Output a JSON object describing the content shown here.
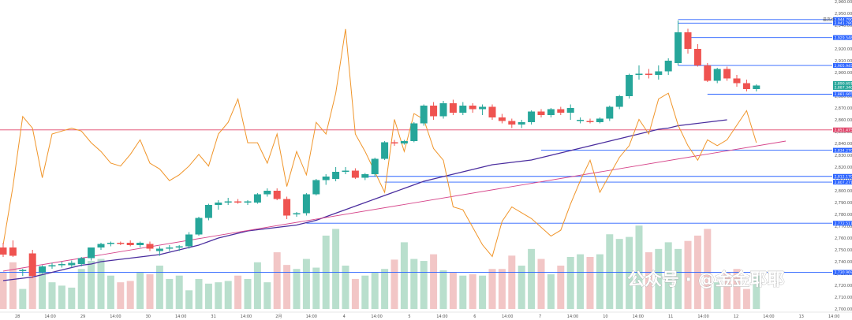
{
  "watermark": {
    "text": "公众号 · @金金耶耶"
  },
  "colors": {
    "up": "#26a69a",
    "down": "#ef5350",
    "vol_up": "#b9dfcd",
    "vol_down": "#f2c6c6",
    "orange": "#f0952a",
    "ma_slow": "#4a2d9e",
    "trend": "#d6458a",
    "level_blue": "#2962ff",
    "level_red": "#e0456a"
  },
  "chart_data": {
    "type": "candlestick",
    "title": "",
    "ylim": [
      2700,
      2960
    ],
    "y_ticks": [
      "2,960.000",
      "2,950.000",
      "2,940.000",
      "2,930.000",
      "2,920.000",
      "2,910.000",
      "2,900.000",
      "2,890.000",
      "2,880.000",
      "2,870.000",
      "2,860.000",
      "2,850.000",
      "2,840.000",
      "2,830.000",
      "2,820.000",
      "2,810.000",
      "2,800.000",
      "2,790.000",
      "2,780.000",
      "2,770.000",
      "2,760.000",
      "2,750.000",
      "2,740.000",
      "2,730.000",
      "2,720.000",
      "2,710.000",
      "2,700.000"
    ],
    "y_tick_values": [
      2960,
      2950,
      2940,
      2930,
      2920,
      2910,
      2900,
      2890,
      2880,
      2870,
      2860,
      2850,
      2840,
      2830,
      2820,
      2810,
      2800,
      2790,
      2780,
      2770,
      2760,
      2750,
      2740,
      2730,
      2720,
      2710,
      2700
    ],
    "x_ticks": [
      "28",
      "14:00",
      "29",
      "14:00",
      "30",
      "14:00",
      "31",
      "14:00",
      "2月",
      "14:00",
      "4",
      "14:00",
      "5",
      "14:00",
      "6",
      "14:00",
      "7",
      "14:00",
      "10",
      "14:00",
      "11",
      "14:00",
      "12",
      "14:00",
      "13",
      "14:00"
    ],
    "x_tick_index": [
      1.5,
      4.5,
      7.5,
      10.5,
      13.5,
      16.5,
      19.5,
      22.5,
      25.5,
      28.5,
      31.5,
      34.5,
      37.5,
      40.5,
      43.5,
      46.5,
      49.5,
      52.5,
      55.5,
      58.5,
      61.5,
      64.5,
      67.5,
      70.5,
      73.5,
      76.5
    ],
    "candles": [
      {
        "o": 2752,
        "h": 2756,
        "l": 2744,
        "c": 2746
      },
      {
        "o": 2752,
        "h": 2758,
        "l": 2744,
        "c": 2745
      },
      {
        "o": 2732,
        "h": 2734,
        "l": 2728,
        "c": 2733
      },
      {
        "o": 2747,
        "h": 2750,
        "l": 2726,
        "c": 2728
      },
      {
        "o": 2731,
        "h": 2737,
        "l": 2730,
        "c": 2736
      },
      {
        "o": 2736,
        "h": 2739,
        "l": 2734,
        "c": 2737
      },
      {
        "o": 2737,
        "h": 2740,
        "l": 2735,
        "c": 2738
      },
      {
        "o": 2737,
        "h": 2741,
        "l": 2735,
        "c": 2739
      },
      {
        "o": 2738,
        "h": 2744,
        "l": 2736,
        "c": 2743
      },
      {
        "o": 2743,
        "h": 2752,
        "l": 2741,
        "c": 2752
      },
      {
        "o": 2752,
        "h": 2756,
        "l": 2750,
        "c": 2755
      },
      {
        "o": 2755,
        "h": 2757,
        "l": 2753,
        "c": 2756
      },
      {
        "o": 2756,
        "h": 2757,
        "l": 2754,
        "c": 2755
      },
      {
        "o": 2756,
        "h": 2758,
        "l": 2753,
        "c": 2754
      },
      {
        "o": 2754,
        "h": 2757,
        "l": 2752,
        "c": 2756
      },
      {
        "o": 2755,
        "h": 2757,
        "l": 2749,
        "c": 2751
      },
      {
        "o": 2749,
        "h": 2753,
        "l": 2745,
        "c": 2751
      },
      {
        "o": 2751,
        "h": 2754,
        "l": 2749,
        "c": 2752
      },
      {
        "o": 2752,
        "h": 2754,
        "l": 2749,
        "c": 2753
      },
      {
        "o": 2753,
        "h": 2765,
        "l": 2751,
        "c": 2763
      },
      {
        "o": 2763,
        "h": 2778,
        "l": 2762,
        "c": 2777
      },
      {
        "o": 2777,
        "h": 2789,
        "l": 2775,
        "c": 2788
      },
      {
        "o": 2788,
        "h": 2792,
        "l": 2784,
        "c": 2790
      },
      {
        "o": 2790,
        "h": 2794,
        "l": 2788,
        "c": 2791
      },
      {
        "o": 2791,
        "h": 2793,
        "l": 2789,
        "c": 2790
      },
      {
        "o": 2790,
        "h": 2792,
        "l": 2788,
        "c": 2791
      },
      {
        "o": 2790,
        "h": 2798,
        "l": 2789,
        "c": 2797
      },
      {
        "o": 2797,
        "h": 2802,
        "l": 2795,
        "c": 2800
      },
      {
        "o": 2800,
        "h": 2802,
        "l": 2792,
        "c": 2793
      },
      {
        "o": 2793,
        "h": 2795,
        "l": 2776,
        "c": 2779
      },
      {
        "o": 2780,
        "h": 2782,
        "l": 2778,
        "c": 2781
      },
      {
        "o": 2781,
        "h": 2798,
        "l": 2779,
        "c": 2797
      },
      {
        "o": 2797,
        "h": 2810,
        "l": 2796,
        "c": 2809
      },
      {
        "o": 2809,
        "h": 2814,
        "l": 2805,
        "c": 2812
      },
      {
        "o": 2810,
        "h": 2820,
        "l": 2808,
        "c": 2816
      },
      {
        "o": 2816,
        "h": 2820,
        "l": 2814,
        "c": 2817
      },
      {
        "o": 2817,
        "h": 2819,
        "l": 2810,
        "c": 2811
      },
      {
        "o": 2811,
        "h": 2815,
        "l": 2809,
        "c": 2814
      },
      {
        "o": 2814,
        "h": 2828,
        "l": 2812,
        "c": 2827
      },
      {
        "o": 2827,
        "h": 2842,
        "l": 2826,
        "c": 2841
      },
      {
        "o": 2841,
        "h": 2843,
        "l": 2838,
        "c": 2840
      },
      {
        "o": 2840,
        "h": 2843,
        "l": 2839,
        "c": 2842
      },
      {
        "o": 2842,
        "h": 2858,
        "l": 2841,
        "c": 2857
      },
      {
        "o": 2857,
        "h": 2873,
        "l": 2855,
        "c": 2872
      },
      {
        "o": 2872,
        "h": 2875,
        "l": 2860,
        "c": 2863
      },
      {
        "o": 2863,
        "h": 2876,
        "l": 2861,
        "c": 2874
      },
      {
        "o": 2874,
        "h": 2877,
        "l": 2864,
        "c": 2866
      },
      {
        "o": 2866,
        "h": 2875,
        "l": 2864,
        "c": 2872
      },
      {
        "o": 2872,
        "h": 2874,
        "l": 2866,
        "c": 2869
      },
      {
        "o": 2869,
        "h": 2873,
        "l": 2864,
        "c": 2871
      },
      {
        "o": 2871,
        "h": 2873,
        "l": 2860,
        "c": 2862
      },
      {
        "o": 2862,
        "h": 2865,
        "l": 2857,
        "c": 2859
      },
      {
        "o": 2859,
        "h": 2861,
        "l": 2853,
        "c": 2856
      },
      {
        "o": 2856,
        "h": 2860,
        "l": 2853,
        "c": 2858
      },
      {
        "o": 2858,
        "h": 2868,
        "l": 2856,
        "c": 2867
      },
      {
        "o": 2867,
        "h": 2869,
        "l": 2862,
        "c": 2864
      },
      {
        "o": 2864,
        "h": 2870,
        "l": 2862,
        "c": 2869
      },
      {
        "o": 2869,
        "h": 2871,
        "l": 2864,
        "c": 2866
      },
      {
        "o": 2866,
        "h": 2873,
        "l": 2860,
        "c": 2870
      },
      {
        "o": 2859,
        "h": 2862,
        "l": 2857,
        "c": 2860
      },
      {
        "o": 2859,
        "h": 2861,
        "l": 2857,
        "c": 2858
      },
      {
        "o": 2858,
        "h": 2862,
        "l": 2857,
        "c": 2861
      },
      {
        "o": 2861,
        "h": 2872,
        "l": 2859,
        "c": 2871
      },
      {
        "o": 2871,
        "h": 2881,
        "l": 2869,
        "c": 2880
      },
      {
        "o": 2880,
        "h": 2899,
        "l": 2878,
        "c": 2898
      },
      {
        "o": 2898,
        "h": 2906,
        "l": 2894,
        "c": 2899
      },
      {
        "o": 2899,
        "h": 2903,
        "l": 2895,
        "c": 2898
      },
      {
        "o": 2898,
        "h": 2906,
        "l": 2894,
        "c": 2901
      },
      {
        "o": 2901,
        "h": 2912,
        "l": 2898,
        "c": 2910
      },
      {
        "o": 2908,
        "h": 2944,
        "l": 2906,
        "c": 2934
      },
      {
        "o": 2934,
        "h": 2937,
        "l": 2916,
        "c": 2920
      },
      {
        "o": 2920,
        "h": 2924,
        "l": 2905,
        "c": 2906
      },
      {
        "o": 2906,
        "h": 2908,
        "l": 2892,
        "c": 2893
      },
      {
        "o": 2893,
        "h": 2904,
        "l": 2891,
        "c": 2903
      },
      {
        "o": 2903,
        "h": 2905,
        "l": 2893,
        "c": 2895
      },
      {
        "o": 2895,
        "h": 2898,
        "l": 2888,
        "c": 2891
      },
      {
        "o": 2891,
        "h": 2894,
        "l": 2884,
        "c": 2886
      },
      {
        "o": 2886,
        "h": 2890,
        "l": 2884,
        "c": 2889
      }
    ],
    "volume": [
      55,
      70,
      30,
      72,
      60,
      40,
      35,
      32,
      60,
      72,
      75,
      50,
      40,
      42,
      55,
      52,
      65,
      45,
      50,
      28,
      45,
      38,
      40,
      42,
      50,
      45,
      70,
      40,
      85,
      66,
      60,
      75,
      62,
      110,
      120,
      65,
      45,
      50,
      55,
      60,
      74,
      100,
      75,
      72,
      82,
      58,
      55,
      50,
      52,
      50,
      60,
      60,
      80,
      65,
      90,
      75,
      52,
      65,
      78,
      82,
      78,
      82,
      112,
      105,
      108,
      125,
      85,
      90,
      100,
      90,
      102,
      110,
      120,
      40,
      55,
      60,
      30,
      50
    ],
    "vol_max": 130,
    "ma_slow_values": [
      2724,
      2725,
      2726,
      2727,
      2729,
      2731,
      2733,
      2735,
      2737,
      2738,
      2740,
      2741,
      2742,
      2743,
      2744,
      2745,
      2746,
      2748,
      2750,
      2752,
      2754,
      2757,
      2760,
      2762,
      2764,
      2766,
      2767,
      2768,
      2769,
      2770,
      2771,
      2773,
      2775,
      2778,
      2781,
      2784,
      2787,
      2790,
      2793,
      2796,
      2799,
      2802,
      2805,
      2808,
      2810,
      2812,
      2814,
      2816,
      2818,
      2820,
      2822,
      2823,
      2824,
      2825,
      2826,
      2828,
      2830,
      2832,
      2834,
      2836,
      2838,
      2840,
      2842,
      2844,
      2846,
      2848,
      2850,
      2852,
      2853,
      2855,
      2856,
      2857,
      2858,
      2859,
      2860
    ],
    "oscillator": [
      22,
      42,
      66,
      62,
      45,
      60,
      61,
      62,
      61,
      57,
      54,
      50,
      49,
      53,
      58,
      50,
      48,
      44,
      46,
      49,
      53,
      49,
      60,
      64,
      72,
      57,
      57,
      50,
      60,
      42,
      54,
      46,
      64,
      60,
      74,
      96,
      60,
      54,
      47,
      40,
      65,
      54,
      67,
      65,
      55,
      51,
      35,
      34,
      28,
      22,
      18,
      30,
      35,
      33,
      31,
      28,
      25,
      27,
      36,
      44,
      51,
      40,
      46,
      52,
      56,
      65,
      60,
      72,
      74,
      63,
      56,
      51,
      58,
      56,
      58,
      63,
      68,
      57
    ],
    "osc_range": [
      0,
      100
    ],
    "levels": [
      {
        "price": 2944.79,
        "label": "2,944.790",
        "color": "#2962ff",
        "from": 69
      },
      {
        "price": 2941.78,
        "label": "2,941.780",
        "color": "#2962ff",
        "from": 69
      },
      {
        "price": 2929.548,
        "label": "2,929.548",
        "color": "#2962ff",
        "from": 70
      },
      {
        "price": 2905.945,
        "label": "2,905.945",
        "color": "#2962ff",
        "from": 69
      },
      {
        "price": 2881.665,
        "label": "2,881.665",
        "color": "#2962ff",
        "from": 72
      },
      {
        "price": 2851.475,
        "label": "2,851.475",
        "color": "#e0456a",
        "from": 0
      },
      {
        "price": 2834.27,
        "label": "2,834.270",
        "color": "#2962ff",
        "from": 55
      },
      {
        "price": 2812.17,
        "label": "2,812.170",
        "color": "#2962ff",
        "from": 37
      },
      {
        "price": 2807.271,
        "label": "2,807.271",
        "color": "#2962ff",
        "from": 39
      },
      {
        "price": 2772.511,
        "label": "2,772.511",
        "color": "#2962ff",
        "from": 31
      },
      {
        "price": 2730.969,
        "label": "2,730.969",
        "color": "#2962ff",
        "from": 0
      }
    ],
    "price_tags": [
      {
        "price": 2890.691,
        "label": "2,890.691",
        "color": "#26a69a"
      },
      {
        "price": 2887.34,
        "label": "2,887.340",
        "color": "#26a69a"
      }
    ],
    "top_label": "最高价",
    "trendline": {
      "from": [
        0,
        2732
      ],
      "to": [
        80,
        2842
      ]
    }
  }
}
